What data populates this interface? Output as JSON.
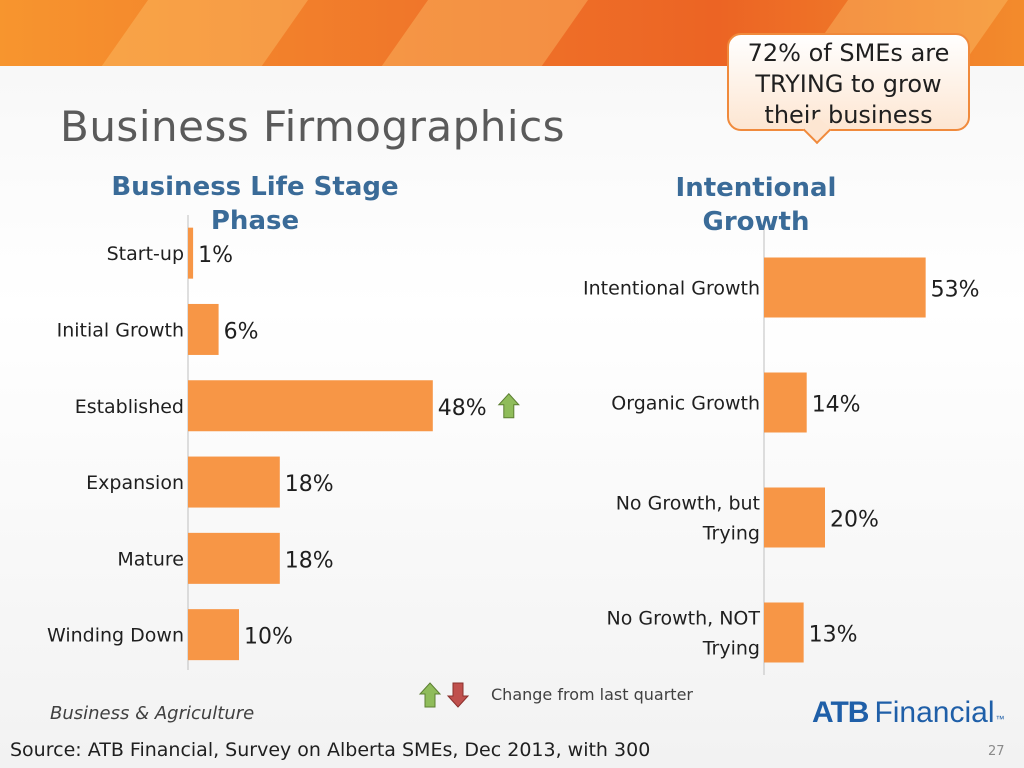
{
  "slide": {
    "title": "Business Firmographics",
    "callout": [
      "72% of SMEs are",
      "TRYING to grow",
      "their business"
    ],
    "legend_text": "Change from last quarter",
    "footer_left": "Business & Agriculture",
    "logo_bold": "ATB",
    "logo_regular": "Financial",
    "logo_tm": "™",
    "source": "Source: ATB Financial, Survey on Alberta SMEs, Dec 2013, with 300",
    "page_number": "27"
  },
  "colors": {
    "bar": "#f79646",
    "title_blue": "#3a6b98",
    "arrow_up": "#8fbc5a",
    "arrow_down": "#c0504d"
  },
  "chart_data": [
    {
      "type": "bar",
      "orientation": "horizontal",
      "title_lines": [
        "Business Life Stage",
        "Phase"
      ],
      "categories": [
        "Start-up",
        "Initial Growth",
        "Established",
        "Expansion",
        "Mature",
        "Winding Down"
      ],
      "values": [
        1,
        6,
        48,
        18,
        18,
        10
      ],
      "data_labels": [
        "1%",
        "6%",
        "48%",
        "18%",
        "18%",
        "10%"
      ],
      "annotations": [
        {
          "category": "Established",
          "marker": "arrow-up",
          "meaning": "increase from last quarter"
        }
      ],
      "xlim": [
        0,
        100
      ],
      "grid": false,
      "legend": "none"
    },
    {
      "type": "bar",
      "orientation": "horizontal",
      "title_lines": [
        "Intentional",
        "Growth"
      ],
      "categories": [
        [
          "Intentional Growth"
        ],
        [
          "Organic Growth"
        ],
        [
          "No Growth, but",
          "Trying"
        ],
        [
          "No Growth, NOT",
          "Trying"
        ]
      ],
      "values": [
        53,
        14,
        20,
        13
      ],
      "data_labels": [
        "53%",
        "14%",
        "20%",
        "13%"
      ],
      "xlim": [
        0,
        100
      ],
      "grid": false,
      "legend": "none"
    }
  ]
}
